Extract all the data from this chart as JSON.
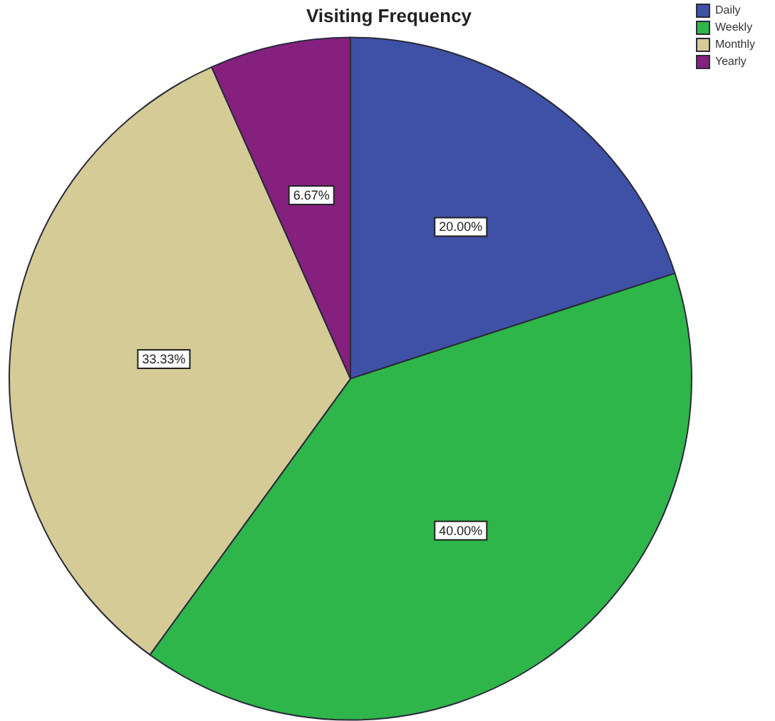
{
  "chart_data": {
    "type": "pie",
    "title": "Visiting Frequency",
    "categories": [
      "Daily",
      "Weekly",
      "Monthly",
      "Yearly"
    ],
    "values": [
      20.0,
      40.0,
      33.33,
      6.67
    ],
    "colors": [
      "#3f51a6",
      "#2fb64a",
      "#d5cb96",
      "#85207f"
    ],
    "value_labels": [
      "20.00%",
      "40.00%",
      "33.33%",
      "6.67%"
    ],
    "legend": "top right"
  }
}
